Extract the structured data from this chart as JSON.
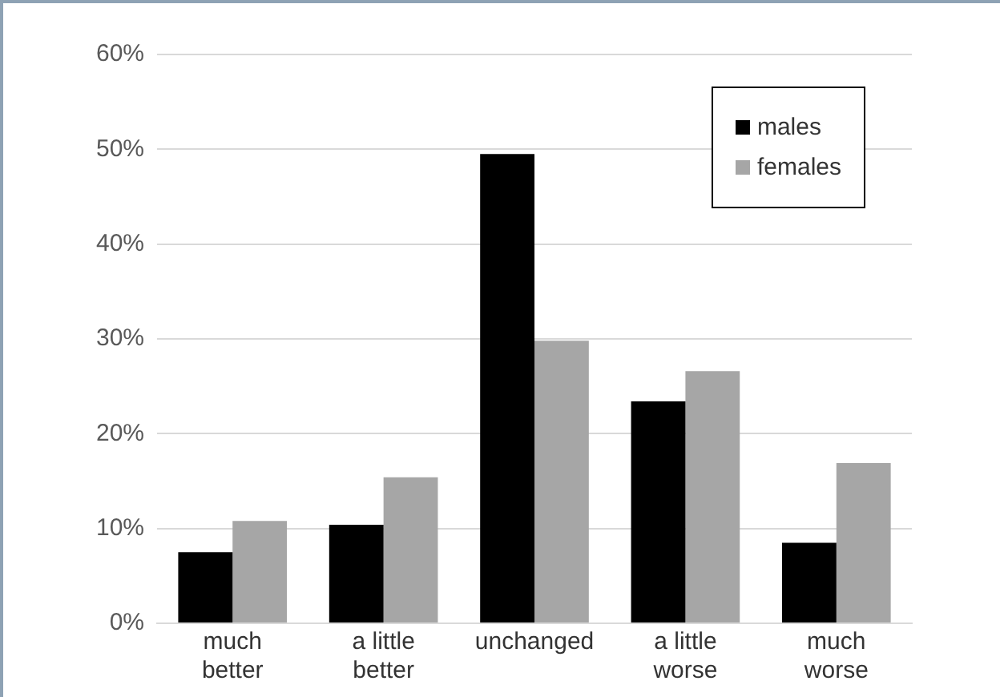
{
  "chart_data": {
    "type": "bar",
    "categories": [
      "much better",
      "a little better",
      "unchanged",
      "a little worse",
      "much worse"
    ],
    "series": [
      {
        "name": "males",
        "color": "#000000",
        "values": [
          7.5,
          10.4,
          49.5,
          23.4,
          8.5
        ]
      },
      {
        "name": "females",
        "color": "#a6a6a6",
        "values": [
          10.8,
          15.4,
          29.8,
          26.6,
          16.9
        ]
      }
    ],
    "ylim": [
      0,
      60
    ],
    "yticks": [
      {
        "value": 0,
        "label": "0%"
      },
      {
        "value": 10,
        "label": "10%"
      },
      {
        "value": 20,
        "label": "20%"
      },
      {
        "value": 30,
        "label": "30%"
      },
      {
        "value": 40,
        "label": "40%"
      },
      {
        "value": 50,
        "label": "50%"
      },
      {
        "value": 60,
        "label": "60%"
      }
    ],
    "grid": "y",
    "legend": "top right"
  }
}
